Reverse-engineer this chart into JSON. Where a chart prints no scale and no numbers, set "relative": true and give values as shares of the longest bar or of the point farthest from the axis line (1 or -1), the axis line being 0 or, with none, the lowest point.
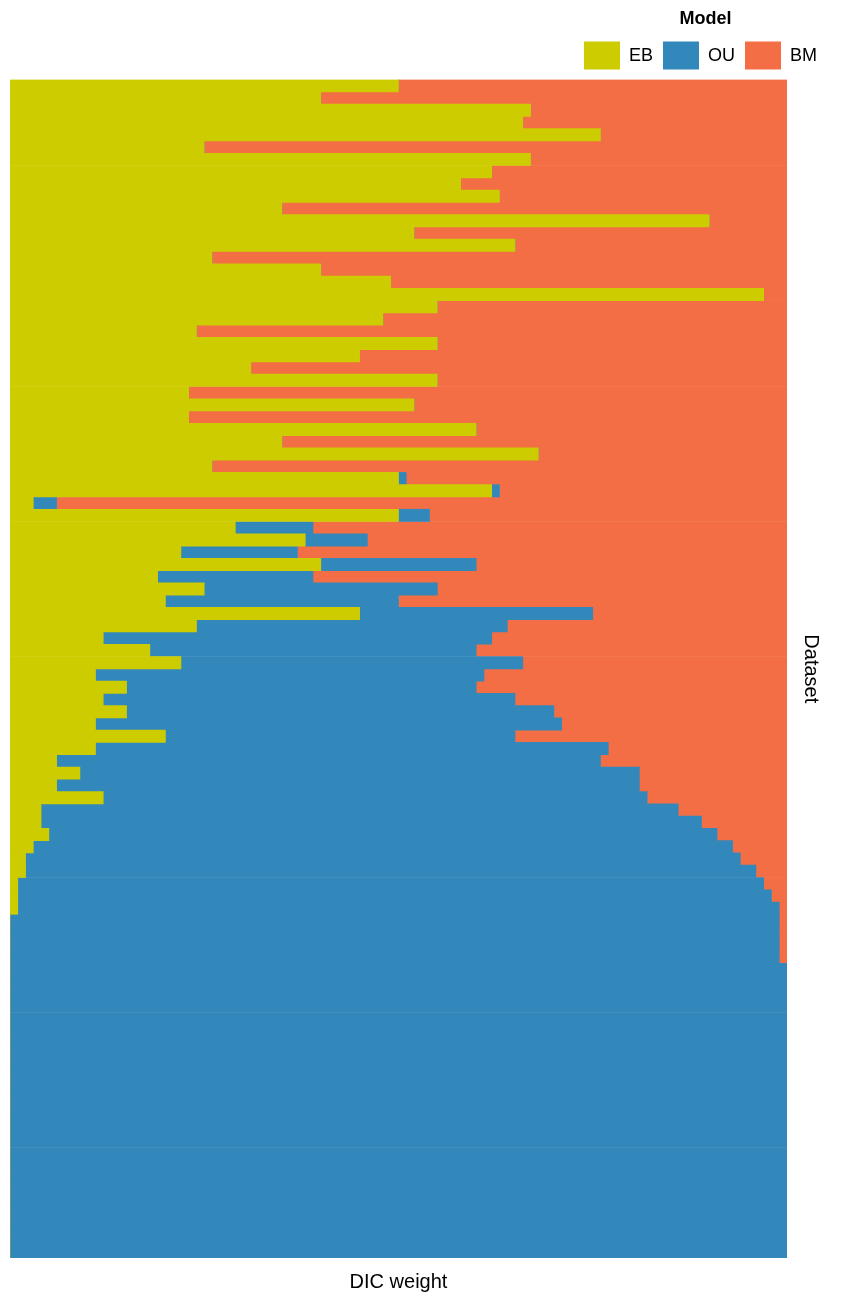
{
  "chart_data": {
    "type": "bar",
    "orientation": "horizontal",
    "stacked": true,
    "relative": true,
    "xlabel": "DIC weight",
    "ylabel": "Dataset",
    "legend_title": "Model",
    "legend": "top right",
    "grid": false,
    "categories": [
      null,
      null,
      null,
      null,
      null,
      null,
      null,
      null,
      null,
      null,
      null,
      null,
      null,
      null,
      null,
      null,
      null,
      null,
      null,
      null,
      null,
      null,
      null,
      null,
      null,
      null,
      null,
      null,
      null,
      null,
      null,
      null,
      null,
      null,
      null,
      null,
      null,
      null,
      null,
      null,
      null,
      null,
      null,
      null,
      null,
      null,
      null,
      null,
      null,
      null,
      null,
      null,
      null,
      null,
      null,
      null,
      null,
      null,
      null,
      null,
      null,
      null,
      null,
      null,
      null,
      null,
      null,
      null,
      null,
      null,
      null,
      null,
      null,
      null,
      null,
      null,
      null,
      null,
      null,
      null,
      null,
      null,
      null,
      null,
      null,
      null,
      null,
      null,
      null,
      null,
      null,
      null,
      null,
      null,
      null,
      null
    ],
    "series": [
      {
        "name": "EB",
        "color": "#cccc00",
        "values": [
          0.5,
          0.4,
          0.67,
          0.66,
          0.76,
          0.25,
          0.67,
          0.62,
          0.58,
          0.63,
          0.35,
          0.9,
          0.52,
          0.65,
          0.26,
          0.4,
          0.49,
          0.97,
          0.55,
          0.48,
          0.24,
          0.55,
          0.45,
          0.31,
          0.55,
          0.23,
          0.52,
          0.23,
          0.6,
          0.35,
          0.68,
          0.26,
          0.5,
          0.62,
          0.03,
          0.5,
          0.29,
          0.38,
          0.22,
          0.4,
          0.19,
          0.25,
          0.2,
          0.45,
          0.24,
          0.12,
          0.18,
          0.22,
          0.11,
          0.15,
          0.12,
          0.15,
          0.11,
          0.2,
          0.11,
          0.06,
          0.09,
          0.06,
          0.12,
          0.04,
          0.04,
          0.05,
          0.03,
          0.02,
          0.02,
          0.01,
          0.01,
          0.01,
          0,
          0,
          0,
          0,
          0,
          0,
          0,
          0,
          0,
          0,
          0,
          0,
          0,
          0,
          0,
          0,
          0,
          0,
          0,
          0,
          0,
          0,
          0,
          0,
          0,
          0,
          0,
          0
        ]
      },
      {
        "name": "OU",
        "color": "#3388bb",
        "values": [
          0,
          0,
          0,
          0,
          0,
          0,
          0,
          0,
          0,
          0,
          0,
          0,
          0,
          0,
          0,
          0,
          0,
          0,
          0,
          0,
          0,
          0,
          0,
          0,
          0,
          0,
          0,
          0,
          0,
          0,
          0,
          0,
          0.01,
          0.01,
          0.03,
          0.04,
          0.1,
          0.08,
          0.15,
          0.2,
          0.2,
          0.3,
          0.3,
          0.3,
          0.4,
          0.5,
          0.42,
          0.44,
          0.5,
          0.45,
          0.53,
          0.55,
          0.6,
          0.45,
          0.66,
          0.7,
          0.72,
          0.75,
          0.7,
          0.82,
          0.85,
          0.86,
          0.9,
          0.92,
          0.94,
          0.96,
          0.97,
          0.98,
          0.99,
          0.99,
          0.99,
          0.99,
          1,
          1,
          1,
          1,
          1,
          1,
          1,
          1,
          1,
          1,
          1,
          1,
          1,
          1,
          1,
          1,
          1,
          1,
          1,
          1,
          1,
          1,
          1,
          1
        ]
      },
      {
        "name": "BM",
        "color": "#f46e45",
        "values": [
          0.5,
          0.6,
          0.33,
          0.34,
          0.24,
          0.75,
          0.33,
          0.38,
          0.42,
          0.37,
          0.65,
          0.1,
          0.48,
          0.35,
          0.74,
          0.6,
          0.51,
          0.03,
          0.45,
          0.52,
          0.76,
          0.45,
          0.55,
          0.69,
          0.45,
          0.77,
          0.48,
          0.77,
          0.4,
          0.65,
          0.32,
          0.74,
          0.49,
          0.37,
          0.94,
          0.46,
          0.61,
          0.54,
          0.63,
          0.4,
          0.61,
          0.45,
          0.5,
          0.25,
          0.36,
          0.38,
          0.4,
          0.34,
          0.39,
          0.4,
          0.35,
          0.3,
          0.29,
          0.35,
          0.23,
          0.24,
          0.19,
          0.19,
          0.18,
          0.14,
          0.11,
          0.09,
          0.07,
          0.06,
          0.04,
          0.03,
          0.02,
          0.01,
          0.01,
          0.01,
          0.01,
          0.01,
          0,
          0,
          0,
          0,
          0,
          0,
          0,
          0,
          0,
          0,
          0,
          0,
          0,
          0,
          0,
          0,
          0,
          0,
          0,
          0,
          0,
          0,
          0,
          0
        ]
      }
    ]
  }
}
